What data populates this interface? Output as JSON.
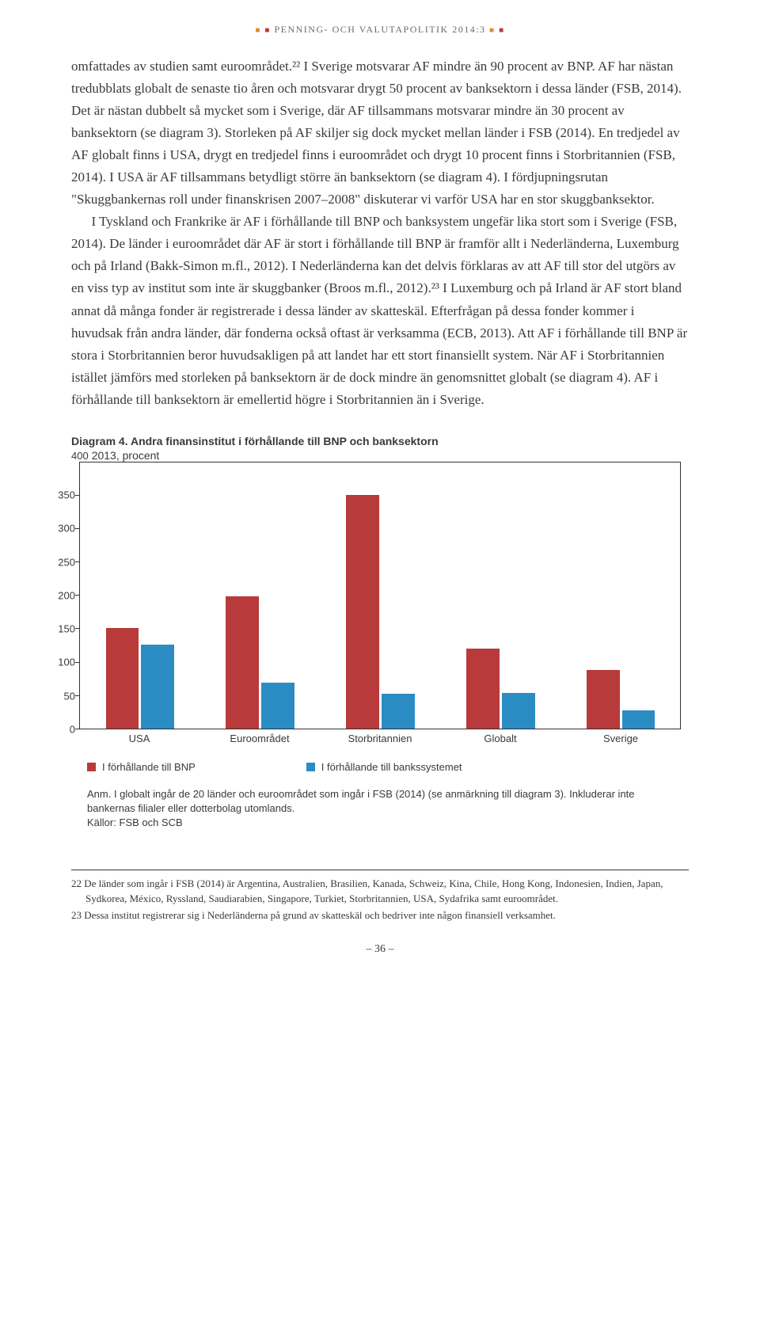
{
  "header": "PENNING- OCH VALUTAPOLITIK  2014:3",
  "body": {
    "p1": "omfattades av studien samt euroområdet.²² I Sverige motsvarar AF mindre än 90 procent av BNP. AF har nästan tredubblats globalt de senaste tio åren och motsvarar drygt 50 procent av banksektorn i dessa länder (FSB, 2014). Det är nästan dubbelt så mycket som i Sverige, där AF tillsammans motsvarar mindre än 30 procent av banksektorn (se diagram 3). Storleken på AF skiljer sig dock mycket mellan länder i FSB (2014). En tredjedel av AF globalt finns i USA, drygt en tredjedel finns i euroområdet och drygt 10 procent finns i Storbritannien (FSB, 2014). I USA är AF tillsammans betydligt större än banksektorn (se diagram 4). I fördjupningsrutan \"Skuggbankernas roll under finanskrisen 2007–2008\" diskuterar vi varför USA har en stor skuggbanksektor.",
    "p2": "I Tyskland och Frankrike är AF i förhållande till BNP och banksystem ungefär lika stort som i Sverige (FSB, 2014). De länder i euroområdet där AF är stort i förhållande till BNP är framför allt i Nederländerna, Luxemburg och på Irland (Bakk-Simon m.fl., 2012). I Nederländerna kan det delvis förklaras av att AF till stor del utgörs av en viss typ av institut som inte är skuggbanker (Broos m.fl., 2012).²³ I Luxemburg och på Irland är AF stort bland annat då många fonder är registrerade i dessa länder av skatteskäl. Efterfrågan på dessa fonder kommer i huvudsak från andra länder, där fonderna också oftast är verksamma (ECB, 2013). Att AF i förhållande till BNP är stora i Storbritannien beror huvudsakligen på att landet har ett stort finansiellt system. När AF i Storbritannien istället jämförs med storleken på banksektorn är de dock mindre än genomsnittet globalt (se diagram 4). AF i förhållande till banksektorn är emellertid högre i Storbritannien än i Sverige."
  },
  "chart": {
    "title_bold": "Diagram 4. Andra finansinstitut i förhållande till BNP och banksektorn",
    "subtitle": "2013, procent",
    "ymax": 400,
    "yticks": [
      0,
      50,
      100,
      150,
      200,
      250,
      300,
      350,
      400
    ],
    "categories": [
      "USA",
      "Euroområdet",
      "Storbritannien",
      "Globalt",
      "Sverige"
    ],
    "series": [
      {
        "name": "I förhållande till BNP",
        "color": "#b83a3a",
        "values": [
          150,
          198,
          350,
          120,
          88
        ]
      },
      {
        "name": "I förhållande till bankssystemet",
        "color": "#2b8cc4",
        "values": [
          125,
          68,
          52,
          53,
          27
        ]
      }
    ],
    "note": "Anm. I globalt ingår de 20 länder och euroområdet som ingår i FSB (2014) (se anmärkning till diagram 3). Inkluderar inte bankernas filialer eller dotterbolag utomlands.",
    "sources": "Källor: FSB och SCB"
  },
  "footnotes": {
    "f22": "22 De länder som ingår i FSB (2014) är Argentina, Australien, Brasilien, Kanada, Schweiz, Kina, Chile, Hong Kong, Indonesien, Indien, Japan, Sydkorea, México, Ryssland, Saudiarabien, Singapore, Turkiet, Storbritannien, USA, Sydafrika samt euroområdet.",
    "f23": "23 Dessa institut registrerar sig i Nederländerna på grund av skatteskäl och bedriver inte någon finansiell verksamhet."
  },
  "page_number": "– 36 –"
}
